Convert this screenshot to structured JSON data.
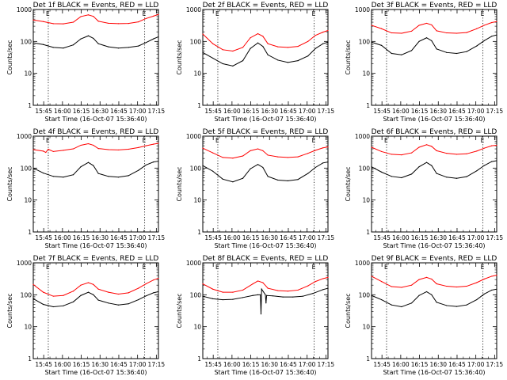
{
  "figure": {
    "xlabel": "Start Time (16-Oct-07 15:36:40)",
    "ylabel": "Counts/sec",
    "x_tick_labels": [
      "15:45",
      "16:00",
      "16:15",
      "16:30",
      "16:45",
      "17:00",
      "17:15"
    ],
    "y_tick_labels": [
      "1",
      "10",
      "100",
      "1000"
    ],
    "marker_labels": [
      "E",
      "E"
    ],
    "colors": {
      "events": "#000000",
      "lld": "#ff0000",
      "marker_lines": "#000000"
    }
  },
  "chart_data": [
    {
      "type": "line",
      "title": "Det 1f BLACK = Events, RED = LLD",
      "x_unit": "minutes after 15:36:40",
      "xlim": [
        0,
        100
      ],
      "ylim": [
        1,
        1000
      ],
      "yscale": "log",
      "markers_x": [
        12,
        89
      ],
      "series": [
        {
          "name": "Events",
          "color": "#000000",
          "x": [
            0,
            8,
            16,
            24,
            32,
            38,
            44,
            48,
            52,
            60,
            68,
            76,
            84,
            90,
            96,
            100
          ],
          "y": [
            90,
            80,
            65,
            62,
            78,
            120,
            150,
            125,
            85,
            68,
            62,
            65,
            72,
            92,
            120,
            140
          ]
        },
        {
          "name": "LLD",
          "color": "#ff0000",
          "x": [
            0,
            8,
            16,
            24,
            32,
            38,
            44,
            48,
            52,
            60,
            68,
            76,
            84,
            90,
            96,
            100
          ],
          "y": [
            470,
            420,
            360,
            355,
            400,
            600,
            680,
            610,
            430,
            370,
            360,
            365,
            410,
            520,
            620,
            700
          ]
        }
      ]
    },
    {
      "type": "line",
      "title": "Det 2f BLACK = Events, RED = LLD",
      "x_unit": "minutes after 15:36:40",
      "xlim": [
        0,
        100
      ],
      "ylim": [
        1,
        1000
      ],
      "yscale": "log",
      "markers_x": [
        12,
        89
      ],
      "series": [
        {
          "name": "Events",
          "color": "#000000",
          "x": [
            0,
            8,
            16,
            24,
            32,
            38,
            44,
            48,
            52,
            60,
            68,
            76,
            84,
            90,
            96,
            100
          ],
          "y": [
            45,
            30,
            20,
            17,
            25,
            60,
            90,
            70,
            38,
            26,
            22,
            25,
            35,
            60,
            85,
            95
          ]
        },
        {
          "name": "LLD",
          "color": "#ff0000",
          "x": [
            0,
            8,
            16,
            24,
            32,
            38,
            44,
            48,
            52,
            60,
            68,
            76,
            84,
            90,
            96,
            100
          ],
          "y": [
            170,
            85,
            55,
            50,
            65,
            130,
            175,
            145,
            85,
            68,
            65,
            70,
            100,
            155,
            195,
            220
          ]
        }
      ]
    },
    {
      "type": "line",
      "title": "Det 3f BLACK = Events, RED = LLD",
      "x_unit": "minutes after 15:36:40",
      "xlim": [
        0,
        100
      ],
      "ylim": [
        1,
        1000
      ],
      "yscale": "log",
      "markers_x": [
        12,
        89
      ],
      "series": [
        {
          "name": "Events",
          "color": "#000000",
          "x": [
            0,
            8,
            16,
            24,
            32,
            38,
            44,
            48,
            52,
            60,
            68,
            76,
            84,
            90,
            96,
            100
          ],
          "y": [
            95,
            75,
            42,
            38,
            52,
            100,
            130,
            105,
            58,
            45,
            42,
            48,
            72,
            105,
            145,
            160
          ]
        },
        {
          "name": "LLD",
          "color": "#ff0000",
          "x": [
            0,
            8,
            16,
            24,
            32,
            38,
            44,
            48,
            52,
            60,
            68,
            76,
            84,
            90,
            96,
            100
          ],
          "y": [
            320,
            250,
            185,
            180,
            210,
            320,
            370,
            330,
            215,
            185,
            180,
            190,
            250,
            320,
            390,
            420
          ]
        }
      ]
    },
    {
      "type": "line",
      "title": "Det 4f BLACK = Events, RED = LLD",
      "x_unit": "minutes after 15:36:40",
      "xlim": [
        0,
        100
      ],
      "ylim": [
        1,
        1000
      ],
      "yscale": "log",
      "markers_x": [
        12,
        89
      ],
      "series": [
        {
          "name": "Events",
          "color": "#000000",
          "x": [
            0,
            8,
            16,
            24,
            32,
            38,
            44,
            48,
            52,
            60,
            68,
            76,
            84,
            90,
            96,
            100
          ],
          "y": [
            100,
            70,
            55,
            52,
            62,
            110,
            150,
            120,
            68,
            55,
            52,
            58,
            85,
            125,
            155,
            165
          ]
        },
        {
          "name": "LLD",
          "color": "#ff0000",
          "x": [
            0,
            8,
            10,
            12,
            16,
            24,
            32,
            38,
            44,
            48,
            52,
            60,
            68,
            76,
            84,
            90,
            96,
            100
          ],
          "y": [
            380,
            340,
            310,
            390,
            330,
            360,
            400,
            520,
            580,
            520,
            410,
            380,
            370,
            390,
            440,
            500,
            560,
            600
          ]
        }
      ]
    },
    {
      "type": "line",
      "title": "Det 5f BLACK = Events, RED = LLD",
      "x_unit": "minutes after 15:36:40",
      "xlim": [
        0,
        100
      ],
      "ylim": [
        1,
        1000
      ],
      "yscale": "log",
      "markers_x": [
        12,
        89
      ],
      "series": [
        {
          "name": "Events",
          "color": "#000000",
          "x": [
            0,
            8,
            16,
            24,
            32,
            38,
            44,
            48,
            52,
            60,
            68,
            76,
            84,
            90,
            96,
            100
          ],
          "y": [
            120,
            80,
            45,
            37,
            48,
            95,
            130,
            105,
            55,
            42,
            40,
            44,
            68,
            105,
            145,
            155
          ]
        },
        {
          "name": "LLD",
          "color": "#ff0000",
          "x": [
            0,
            8,
            16,
            24,
            32,
            38,
            44,
            48,
            52,
            60,
            68,
            76,
            84,
            90,
            96,
            100
          ],
          "y": [
            420,
            300,
            215,
            205,
            240,
            350,
            400,
            350,
            255,
            225,
            215,
            225,
            290,
            360,
            430,
            460
          ]
        }
      ]
    },
    {
      "type": "line",
      "title": "Det 6f BLACK = Events, RED = LLD",
      "x_unit": "minutes after 15:36:40",
      "xlim": [
        0,
        100
      ],
      "ylim": [
        1,
        1000
      ],
      "yscale": "log",
      "markers_x": [
        12,
        89
      ],
      "series": [
        {
          "name": "Events",
          "color": "#000000",
          "x": [
            0,
            8,
            16,
            24,
            32,
            38,
            44,
            48,
            52,
            60,
            68,
            76,
            84,
            90,
            96,
            100
          ],
          "y": [
            110,
            75,
            55,
            50,
            65,
            110,
            150,
            120,
            68,
            52,
            48,
            54,
            82,
            120,
            160,
            170
          ]
        },
        {
          "name": "LLD",
          "color": "#ff0000",
          "x": [
            0,
            8,
            16,
            24,
            32,
            38,
            44,
            48,
            52,
            60,
            68,
            76,
            84,
            90,
            96,
            100
          ],
          "y": [
            450,
            330,
            270,
            260,
            300,
            450,
            540,
            480,
            350,
            290,
            270,
            280,
            340,
            420,
            500,
            520
          ]
        }
      ]
    },
    {
      "type": "line",
      "title": "Det 7f BLACK = Events, RED = LLD",
      "x_unit": "minutes after 15:36:40",
      "xlim": [
        0,
        100
      ],
      "ylim": [
        1,
        1000
      ],
      "yscale": "log",
      "markers_x": [
        12,
        89
      ],
      "series": [
        {
          "name": "Events",
          "color": "#000000",
          "x": [
            0,
            8,
            16,
            24,
            32,
            38,
            44,
            48,
            52,
            60,
            68,
            76,
            84,
            90,
            96,
            100
          ],
          "y": [
            75,
            50,
            42,
            45,
            60,
            95,
            120,
            100,
            68,
            55,
            48,
            52,
            70,
            92,
            115,
            125
          ]
        },
        {
          "name": "LLD",
          "color": "#ff0000",
          "x": [
            0,
            8,
            16,
            24,
            32,
            38,
            44,
            48,
            52,
            60,
            68,
            76,
            84,
            90,
            96,
            100
          ],
          "y": [
            210,
            120,
            90,
            95,
            130,
            200,
            240,
            210,
            150,
            120,
            105,
            115,
            160,
            220,
            290,
            330
          ]
        }
      ]
    },
    {
      "type": "line",
      "title": "Det 8f BLACK = Events, RED = LLD",
      "x_unit": "minutes after 15:36:40",
      "xlim": [
        0,
        100
      ],
      "ylim": [
        1,
        1000
      ],
      "yscale": "log",
      "markers_x": [
        12,
        89
      ],
      "series": [
        {
          "name": "Events",
          "color": "#000000",
          "x": [
            0,
            8,
            16,
            24,
            32,
            40,
            44,
            46,
            46.5,
            47,
            50,
            50.5,
            51,
            56,
            64,
            72,
            80,
            88,
            96,
            100
          ],
          "y": [
            90,
            75,
            70,
            72,
            82,
            95,
            100,
            100,
            25,
            150,
            100,
            55,
            95,
            92,
            85,
            85,
            90,
            110,
            145,
            160
          ]
        },
        {
          "name": "LLD",
          "color": "#ff0000",
          "x": [
            0,
            8,
            16,
            24,
            32,
            40,
            44,
            48,
            52,
            60,
            68,
            76,
            84,
            90,
            96,
            100
          ],
          "y": [
            220,
            150,
            120,
            120,
            140,
            220,
            270,
            240,
            160,
            135,
            130,
            140,
            190,
            260,
            320,
            350
          ]
        }
      ]
    },
    {
      "type": "line",
      "title": "Det 9f BLACK = Events, RED = LLD",
      "x_unit": "minutes after 15:36:40",
      "xlim": [
        0,
        100
      ],
      "ylim": [
        1,
        1000
      ],
      "yscale": "log",
      "markers_x": [
        12,
        89
      ],
      "series": [
        {
          "name": "Events",
          "color": "#000000",
          "x": [
            0,
            8,
            16,
            24,
            32,
            38,
            44,
            48,
            52,
            60,
            68,
            76,
            84,
            90,
            96,
            100
          ],
          "y": [
            95,
            70,
            48,
            42,
            55,
            95,
            125,
            100,
            58,
            46,
            43,
            48,
            70,
            105,
            140,
            150
          ]
        },
        {
          "name": "LLD",
          "color": "#ff0000",
          "x": [
            0,
            8,
            16,
            24,
            32,
            38,
            44,
            48,
            52,
            60,
            68,
            76,
            84,
            90,
            96,
            100
          ],
          "y": [
            380,
            260,
            180,
            170,
            200,
            300,
            350,
            310,
            220,
            185,
            175,
            185,
            240,
            310,
            380,
            410
          ]
        }
      ]
    }
  ]
}
